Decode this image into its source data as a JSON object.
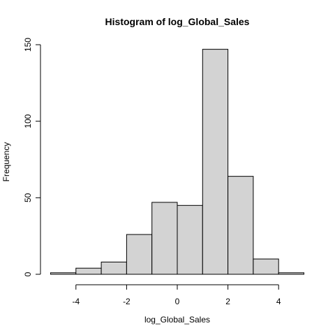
{
  "chart_data": {
    "type": "bar",
    "title": "Histogram of log_Global_Sales",
    "xlabel": "log_Global_Sales",
    "ylabel": "Frequency",
    "bins": [
      {
        "start": -5,
        "end": -4,
        "count": 1
      },
      {
        "start": -4,
        "end": -3,
        "count": 4
      },
      {
        "start": -3,
        "end": -2,
        "count": 8
      },
      {
        "start": -2,
        "end": -1,
        "count": 26
      },
      {
        "start": -1,
        "end": 0,
        "count": 47
      },
      {
        "start": 0,
        "end": 1,
        "count": 45
      },
      {
        "start": 1,
        "end": 2,
        "count": 147
      },
      {
        "start": 2,
        "end": 3,
        "count": 64
      },
      {
        "start": 3,
        "end": 4,
        "count": 10
      },
      {
        "start": 4,
        "end": 5,
        "count": 1
      }
    ],
    "xticks": [
      -4,
      -2,
      0,
      2,
      4
    ],
    "yticks": [
      0,
      50,
      100,
      150
    ],
    "xlim": [
      -5,
      5
    ],
    "ylim": [
      0,
      150
    ],
    "grid": false,
    "legend": "none",
    "colors": {
      "bar_fill": "#d3d3d3",
      "bar_stroke": "#000000",
      "axis": "#000000"
    }
  }
}
